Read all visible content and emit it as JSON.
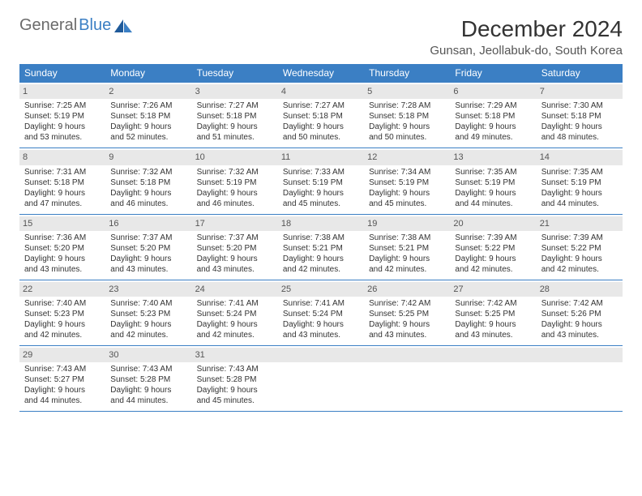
{
  "logo": {
    "part1": "General",
    "part2": "Blue"
  },
  "title": "December 2024",
  "location": "Gunsan, Jeollabuk-do, South Korea",
  "colors": {
    "header_bg": "#3b7fc4",
    "header_text": "#ffffff",
    "daynum_bg": "#e8e8e8",
    "text": "#333333",
    "border": "#3b7fc4",
    "logo_gray": "#6b6b6b",
    "logo_blue": "#3b7fc4"
  },
  "typography": {
    "title_fontsize": 28,
    "location_fontsize": 15,
    "header_fontsize": 12,
    "cell_fontsize": 10,
    "daynum_fontsize": 11
  },
  "weekdays": [
    "Sunday",
    "Monday",
    "Tuesday",
    "Wednesday",
    "Thursday",
    "Friday",
    "Saturday"
  ],
  "weeks": [
    [
      {
        "n": "1",
        "sr": "7:25 AM",
        "ss": "5:19 PM",
        "dl": "9 hours and 53 minutes."
      },
      {
        "n": "2",
        "sr": "7:26 AM",
        "ss": "5:18 PM",
        "dl": "9 hours and 52 minutes."
      },
      {
        "n": "3",
        "sr": "7:27 AM",
        "ss": "5:18 PM",
        "dl": "9 hours and 51 minutes."
      },
      {
        "n": "4",
        "sr": "7:27 AM",
        "ss": "5:18 PM",
        "dl": "9 hours and 50 minutes."
      },
      {
        "n": "5",
        "sr": "7:28 AM",
        "ss": "5:18 PM",
        "dl": "9 hours and 50 minutes."
      },
      {
        "n": "6",
        "sr": "7:29 AM",
        "ss": "5:18 PM",
        "dl": "9 hours and 49 minutes."
      },
      {
        "n": "7",
        "sr": "7:30 AM",
        "ss": "5:18 PM",
        "dl": "9 hours and 48 minutes."
      }
    ],
    [
      {
        "n": "8",
        "sr": "7:31 AM",
        "ss": "5:18 PM",
        "dl": "9 hours and 47 minutes."
      },
      {
        "n": "9",
        "sr": "7:32 AM",
        "ss": "5:18 PM",
        "dl": "9 hours and 46 minutes."
      },
      {
        "n": "10",
        "sr": "7:32 AM",
        "ss": "5:19 PM",
        "dl": "9 hours and 46 minutes."
      },
      {
        "n": "11",
        "sr": "7:33 AM",
        "ss": "5:19 PM",
        "dl": "9 hours and 45 minutes."
      },
      {
        "n": "12",
        "sr": "7:34 AM",
        "ss": "5:19 PM",
        "dl": "9 hours and 45 minutes."
      },
      {
        "n": "13",
        "sr": "7:35 AM",
        "ss": "5:19 PM",
        "dl": "9 hours and 44 minutes."
      },
      {
        "n": "14",
        "sr": "7:35 AM",
        "ss": "5:19 PM",
        "dl": "9 hours and 44 minutes."
      }
    ],
    [
      {
        "n": "15",
        "sr": "7:36 AM",
        "ss": "5:20 PM",
        "dl": "9 hours and 43 minutes."
      },
      {
        "n": "16",
        "sr": "7:37 AM",
        "ss": "5:20 PM",
        "dl": "9 hours and 43 minutes."
      },
      {
        "n": "17",
        "sr": "7:37 AM",
        "ss": "5:20 PM",
        "dl": "9 hours and 43 minutes."
      },
      {
        "n": "18",
        "sr": "7:38 AM",
        "ss": "5:21 PM",
        "dl": "9 hours and 42 minutes."
      },
      {
        "n": "19",
        "sr": "7:38 AM",
        "ss": "5:21 PM",
        "dl": "9 hours and 42 minutes."
      },
      {
        "n": "20",
        "sr": "7:39 AM",
        "ss": "5:22 PM",
        "dl": "9 hours and 42 minutes."
      },
      {
        "n": "21",
        "sr": "7:39 AM",
        "ss": "5:22 PM",
        "dl": "9 hours and 42 minutes."
      }
    ],
    [
      {
        "n": "22",
        "sr": "7:40 AM",
        "ss": "5:23 PM",
        "dl": "9 hours and 42 minutes."
      },
      {
        "n": "23",
        "sr": "7:40 AM",
        "ss": "5:23 PM",
        "dl": "9 hours and 42 minutes."
      },
      {
        "n": "24",
        "sr": "7:41 AM",
        "ss": "5:24 PM",
        "dl": "9 hours and 42 minutes."
      },
      {
        "n": "25",
        "sr": "7:41 AM",
        "ss": "5:24 PM",
        "dl": "9 hours and 43 minutes."
      },
      {
        "n": "26",
        "sr": "7:42 AM",
        "ss": "5:25 PM",
        "dl": "9 hours and 43 minutes."
      },
      {
        "n": "27",
        "sr": "7:42 AM",
        "ss": "5:25 PM",
        "dl": "9 hours and 43 minutes."
      },
      {
        "n": "28",
        "sr": "7:42 AM",
        "ss": "5:26 PM",
        "dl": "9 hours and 43 minutes."
      }
    ],
    [
      {
        "n": "29",
        "sr": "7:43 AM",
        "ss": "5:27 PM",
        "dl": "9 hours and 44 minutes."
      },
      {
        "n": "30",
        "sr": "7:43 AM",
        "ss": "5:28 PM",
        "dl": "9 hours and 44 minutes."
      },
      {
        "n": "31",
        "sr": "7:43 AM",
        "ss": "5:28 PM",
        "dl": "9 hours and 45 minutes."
      },
      {
        "empty": true
      },
      {
        "empty": true
      },
      {
        "empty": true
      },
      {
        "empty": true
      }
    ]
  ],
  "labels": {
    "sunrise": "Sunrise:",
    "sunset": "Sunset:",
    "daylight": "Daylight:"
  }
}
